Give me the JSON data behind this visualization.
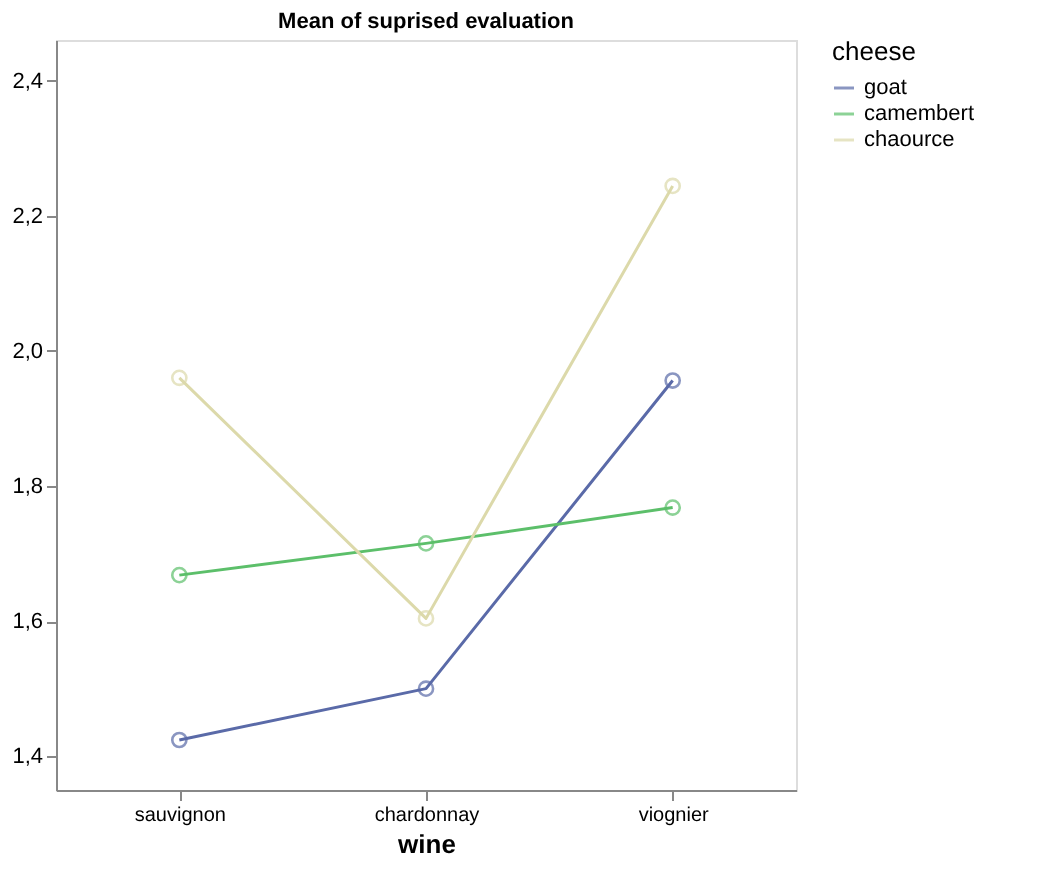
{
  "chart_data": {
    "type": "line",
    "title": "Mean of suprised evaluation",
    "xlabel": "wine",
    "legend_title": "cheese",
    "categories": [
      "sauvignon",
      "chardonnay",
      "viognier"
    ],
    "series": [
      {
        "name": "goat",
        "color": "#5a6aa8",
        "values": [
          1.424,
          1.5,
          1.956
        ]
      },
      {
        "name": "camembert",
        "color": "#5cbf6a",
        "values": [
          1.668,
          1.715,
          1.768
        ]
      },
      {
        "name": "chaource",
        "color": "#dcd9aa",
        "values": [
          1.96,
          1.604,
          2.244
        ]
      }
    ],
    "ylim": [
      1.35,
      2.46
    ],
    "yticks": [
      {
        "value": 1.4,
        "label": "1,4"
      },
      {
        "value": 1.6,
        "label": "1,6"
      },
      {
        "value": 1.8,
        "label": "1,8"
      },
      {
        "value": 2.0,
        "label": "2,0"
      },
      {
        "value": 2.2,
        "label": "2,2"
      },
      {
        "value": 2.4,
        "label": "2,4"
      }
    ],
    "grid": false,
    "legend": "top right",
    "marker": "circle",
    "line_style": "solid"
  }
}
